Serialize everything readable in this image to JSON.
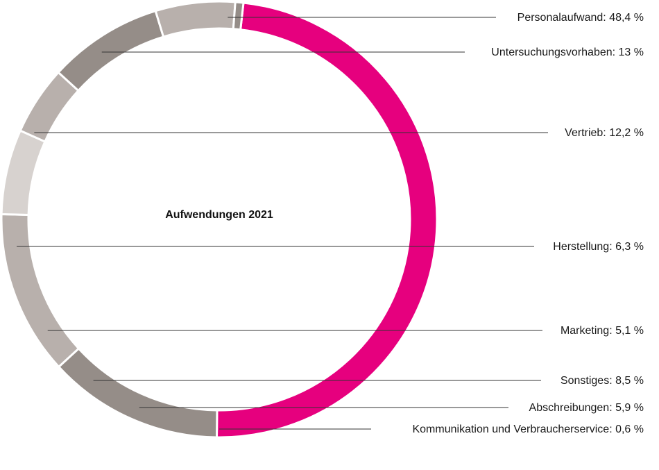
{
  "chart_data": {
    "type": "pie",
    "style": "donut",
    "title": "Aufwendungen 2021",
    "slices": [
      {
        "label": "Personalaufwand: 48,4 %",
        "value": 48.4,
        "color": "#e6007e"
      },
      {
        "label": "Untersuchungsvorhaben: 13 %",
        "value": 13.0,
        "color": "#958d88"
      },
      {
        "label": "Vertrieb: 12,2 %",
        "value": 12.2,
        "color": "#b8b0ac"
      },
      {
        "label": "Herstellung: 6,3 %",
        "value": 6.3,
        "color": "#d7d2cf"
      },
      {
        "label": "Marketing: 5,1 %",
        "value": 5.1,
        "color": "#b8b0ac"
      },
      {
        "label": "Sonstiges: 8,5 %",
        "value": 8.5,
        "color": "#958d88"
      },
      {
        "label": "Abschreibungen: 5,9 %",
        "value": 5.9,
        "color": "#b8b0ac"
      },
      {
        "label": "Kommunikation und Verbraucherservice: 0,6 %",
        "value": 0.6,
        "color": "#958d88"
      }
    ]
  }
}
